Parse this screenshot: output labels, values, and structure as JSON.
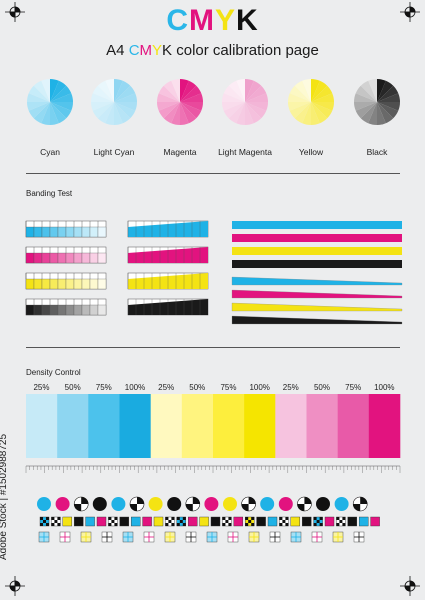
{
  "header": {
    "title_letters": [
      {
        "char": "C",
        "color": "#2ab6e8"
      },
      {
        "char": "M",
        "color": "#e2137f"
      },
      {
        "char": "Y",
        "color": "#f4e313"
      },
      {
        "char": "K",
        "color": "#111111"
      }
    ],
    "subtitle_parts": [
      {
        "text": "A4 ",
        "color": "#1a1a1a"
      },
      {
        "text": "C",
        "color": "#2ab6e8"
      },
      {
        "text": "M",
        "color": "#e2137f"
      },
      {
        "text": "Y",
        "color": "#f4e313"
      },
      {
        "text": "K",
        "color": "#1a1a1a"
      },
      {
        "text": " color calibration page",
        "color": "#1a1a1a"
      }
    ]
  },
  "wheels": [
    {
      "label": "Cyan",
      "color": "#1fb2e6"
    },
    {
      "label": "Light Cyan",
      "color": "#8fd6f2"
    },
    {
      "label": "Magenta",
      "color": "#e2137f"
    },
    {
      "label": "Light Magenta",
      "color": "#ef9fcb"
    },
    {
      "label": "Yellow",
      "color": "#f4e313"
    },
    {
      "label": "Black",
      "color": "#1a1a1a"
    }
  ],
  "banding": {
    "label": "Banding Test",
    "colors": [
      "#1fb2e6",
      "#e2137f",
      "#f4e313",
      "#1a1a1a"
    ]
  },
  "density": {
    "label": "Density Control",
    "percent_labels": [
      "25%",
      "50%",
      "75%",
      "100%",
      "25%",
      "50%",
      "75%",
      "100%",
      "25%",
      "50%",
      "75%",
      "100%"
    ],
    "swatches": [
      "#c6eaf7",
      "#8ed6f1",
      "#4cc2ec",
      "#1aabe0",
      "#fff9bf",
      "#fff47f",
      "#fdee3d",
      "#f5e500",
      "#f6c3df",
      "#ef8fc3",
      "#e85aa8",
      "#e2137f"
    ]
  },
  "dots_row_colors": [
    "#1fb2e6",
    "#e2137f",
    "#f4e313",
    "#111111",
    "#1fb2e6",
    "#e2137f",
    "#f4e313",
    "#111111",
    "#1fb2e6",
    "#e2137f",
    "#f4e313",
    "#111111",
    "#1fb2e6",
    "#e2137f",
    "#f4e313",
    "#111111",
    "#1fb2e6",
    "#e2137f"
  ],
  "watermark": "Adobe Stock | #1502988725",
  "brand_colors": {
    "cyan": "#1fb2e6",
    "magenta": "#e2137f",
    "yellow": "#f4e313",
    "black": "#1a1a1a",
    "paper": "#ecedee"
  }
}
